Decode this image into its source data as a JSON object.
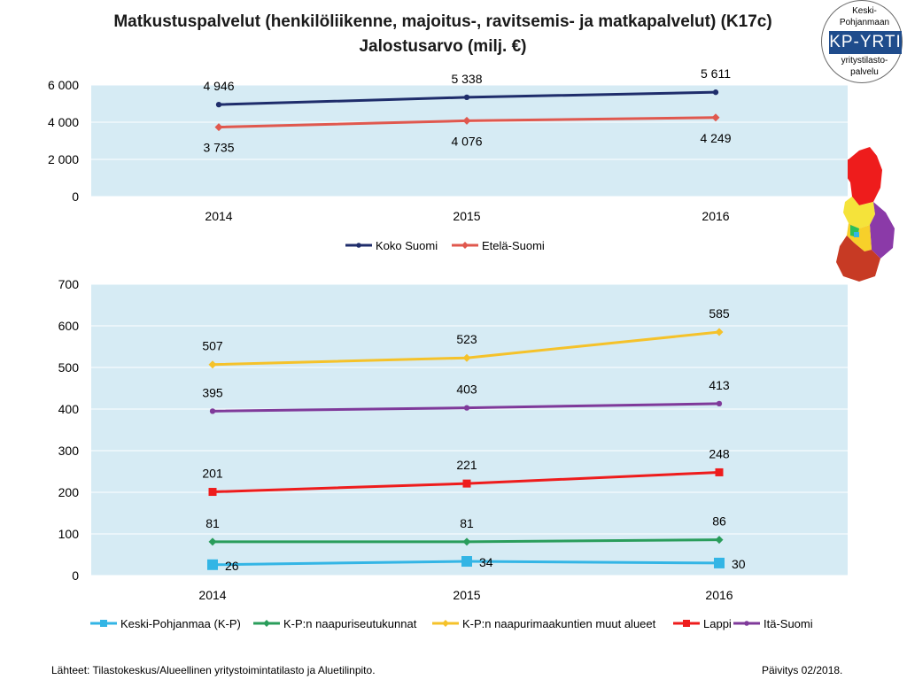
{
  "title": {
    "line1": "Matkustuspalvelut (henkilöliikenne, majoitus-, ravitsemis- ja matkapalvelut) (K17c)",
    "line2": "Jalostusarvo (milj. €)"
  },
  "logo": {
    "line1": "Keski-",
    "line2": "Pohjanmaan",
    "brand": "KP-YRTI",
    "line3": "yritystilasto-",
    "line4": "palvelu",
    "band_color": "#1f4c8c"
  },
  "map": {
    "icon": "finland-regions-map-icon"
  },
  "chart_data": [
    {
      "type": "line",
      "categories": [
        "2014",
        "2015",
        "2016"
      ],
      "ylim": [
        0,
        6000
      ],
      "yticks": [
        0,
        2000,
        4000,
        6000
      ],
      "ytick_labels": [
        "0",
        "2 000",
        "4 000",
        "6 000"
      ],
      "grid": true,
      "legend": "bottom",
      "plot_bg": "#d6ebf4",
      "series": [
        {
          "name": "Koko Suomi",
          "values": [
            4946,
            5338,
            5611
          ],
          "labels": [
            "4 946",
            "5 338",
            "5 611"
          ],
          "color": "#1f2d6b",
          "marker": "circle",
          "label_pos": "above"
        },
        {
          "name": "Etelä-Suomi",
          "values": [
            3735,
            4076,
            4249
          ],
          "labels": [
            "3 735",
            "4 076",
            "4 249"
          ],
          "color": "#e0584e",
          "marker": "diamond",
          "label_pos": "below"
        }
      ]
    },
    {
      "type": "line",
      "categories": [
        "2014",
        "2015",
        "2016"
      ],
      "ylim": [
        0,
        700
      ],
      "yticks": [
        0,
        100,
        200,
        300,
        400,
        500,
        600,
        700
      ],
      "ytick_labels": [
        "0",
        "100",
        "200",
        "300",
        "400",
        "500",
        "600",
        "700"
      ],
      "grid": true,
      "legend": "bottom",
      "plot_bg": "#d6ebf4",
      "series": [
        {
          "name": "Keski-Pohjanmaa (K-P)",
          "values": [
            26,
            34,
            30
          ],
          "labels": [
            "26",
            "34",
            "30"
          ],
          "color": "#33b5e5",
          "marker": "square",
          "label_pos": "right"
        },
        {
          "name": "K-P:n naapuriseutukunnat",
          "values": [
            81,
            81,
            86
          ],
          "labels": [
            "81",
            "81",
            "86"
          ],
          "color": "#2a9d5b",
          "marker": "diamond",
          "label_pos": "above"
        },
        {
          "name": "K-P:n naapurimaakuntien muut alueet",
          "values": [
            507,
            523,
            585
          ],
          "labels": [
            "507",
            "523",
            "585"
          ],
          "color": "#f5c22a",
          "marker": "diamond",
          "label_pos": "above"
        },
        {
          "name": "Lappi",
          "values": [
            201,
            221,
            248
          ],
          "labels": [
            "201",
            "221",
            "248"
          ],
          "color": "#ee1c1c",
          "marker": "square",
          "label_pos": "above"
        },
        {
          "name": "Itä-Suomi",
          "values": [
            395,
            403,
            413
          ],
          "labels": [
            "395",
            "403",
            "413"
          ],
          "color": "#7f3a9a",
          "marker": "circle",
          "label_pos": "above"
        }
      ]
    }
  ],
  "footer": {
    "source": "Lähteet: Tilastokeskus/Alueellinen yritystoimintatilasto ja Aluetilinpito.",
    "updated": "Päivitys 02/2018."
  }
}
